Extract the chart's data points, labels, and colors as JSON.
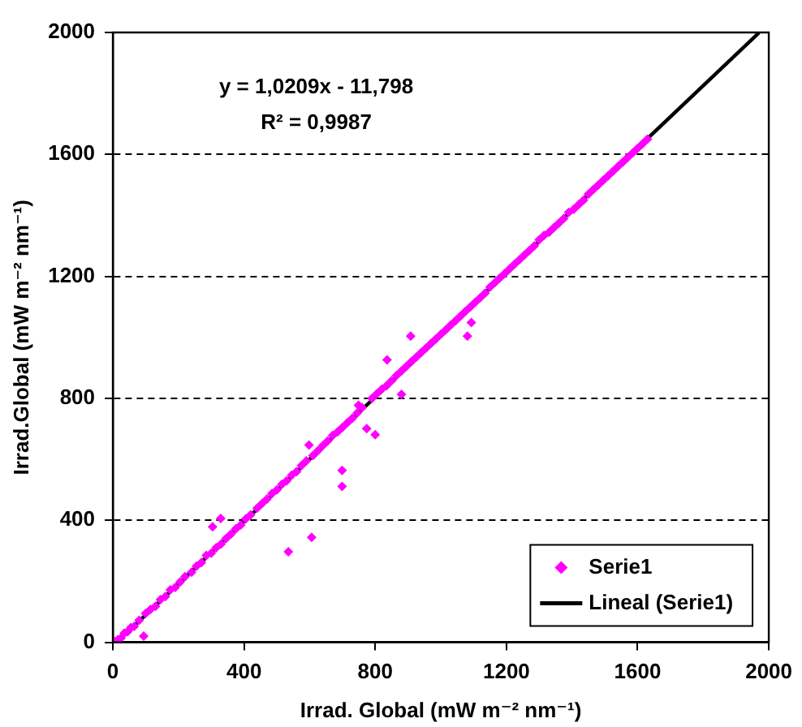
{
  "chart_data": {
    "type": "scatter",
    "xlabel": "Irrad. Global (mW m⁻² nm⁻¹)",
    "ylabel": "Irrad.Global (mW m⁻² nm⁻¹)",
    "annotations": [
      "y = 1,0209x - 11,798",
      "R² = 0,9987"
    ],
    "xlim": [
      0,
      2000
    ],
    "xticks": [
      0,
      400,
      800,
      1200,
      1600,
      2000
    ],
    "ylim": [
      0,
      2000
    ],
    "yticks": [
      0,
      400,
      800,
      1200,
      1600,
      2000
    ],
    "grid": "y",
    "legend": "bottom right",
    "marker": "diamond",
    "series": [
      {
        "name": "Serie1",
        "color": "#ff00ff",
        "x": [
          5,
          15,
          25,
          35,
          45,
          55,
          65,
          80,
          94,
          100,
          115,
          130,
          145,
          160,
          175,
          190,
          205,
          220,
          240,
          255,
          270,
          285,
          300,
          304,
          315,
          329,
          330,
          345,
          360,
          375,
          390,
          405,
          420,
          440,
          455,
          470,
          485,
          500,
          515,
          530,
          535,
          545,
          560,
          575,
          590,
          598,
          606,
          610,
          625,
          640,
          655,
          670,
          685,
          699,
          699,
          700,
          715,
          730,
          745,
          749,
          760,
          774,
          790,
          800,
          805,
          820,
          836,
          835,
          850,
          865,
          880,
          880,
          895,
          908,
          910,
          925,
          940,
          955,
          970,
          985,
          1000,
          1015,
          1030,
          1045,
          1060,
          1075,
          1081,
          1093,
          1090,
          1105,
          1120,
          1135,
          1150,
          1165,
          1180,
          1195,
          1210,
          1225,
          1240,
          1255,
          1270,
          1285,
          1300,
          1315,
          1330,
          1345,
          1360,
          1375,
          1390,
          1405,
          1420,
          1435,
          1450,
          1465,
          1480,
          1495,
          1510,
          1525,
          1540,
          1555,
          1570,
          1585,
          1600,
          1615,
          1630
        ],
        "values": [
          2,
          8,
          14,
          30,
          35,
          48,
          52,
          72,
          20,
          95,
          108,
          118,
          140,
          150,
          172,
          180,
          198,
          215,
          230,
          250,
          262,
          285,
          292,
          379,
          310,
          406,
          322,
          340,
          355,
          372,
          385,
          405,
          418,
          440,
          455,
          470,
          488,
          500,
          518,
          530,
          297,
          548,
          560,
          580,
          595,
          647,
          344,
          612,
          628,
          645,
          660,
          678,
          690,
          511,
          564,
          705,
          720,
          735,
          752,
          777,
          770,
          701,
          800,
          681,
          815,
          830,
          926,
          842,
          858,
          875,
          813,
          890,
          905,
          1004,
          920,
          935,
          950,
          965,
          980,
          995,
          1010,
          1025,
          1040,
          1055,
          1070,
          1085,
          1004,
          1049,
          1100,
          1115,
          1130,
          1145,
          1165,
          1180,
          1195,
          1210,
          1225,
          1240,
          1255,
          1270,
          1285,
          1300,
          1320,
          1335,
          1345,
          1360,
          1375,
          1390,
          1410,
          1420,
          1435,
          1450,
          1470,
          1485,
          1500,
          1515,
          1530,
          1545,
          1560,
          1575,
          1590,
          1605,
          1620,
          1635,
          1650
        ]
      },
      {
        "name": "Lineal (Serie1)",
        "type": "line",
        "color": "#000000",
        "marker": "none",
        "line_style": "solid",
        "x": [
          12,
          1970
        ],
        "values": [
          0,
          1999
        ]
      }
    ]
  }
}
